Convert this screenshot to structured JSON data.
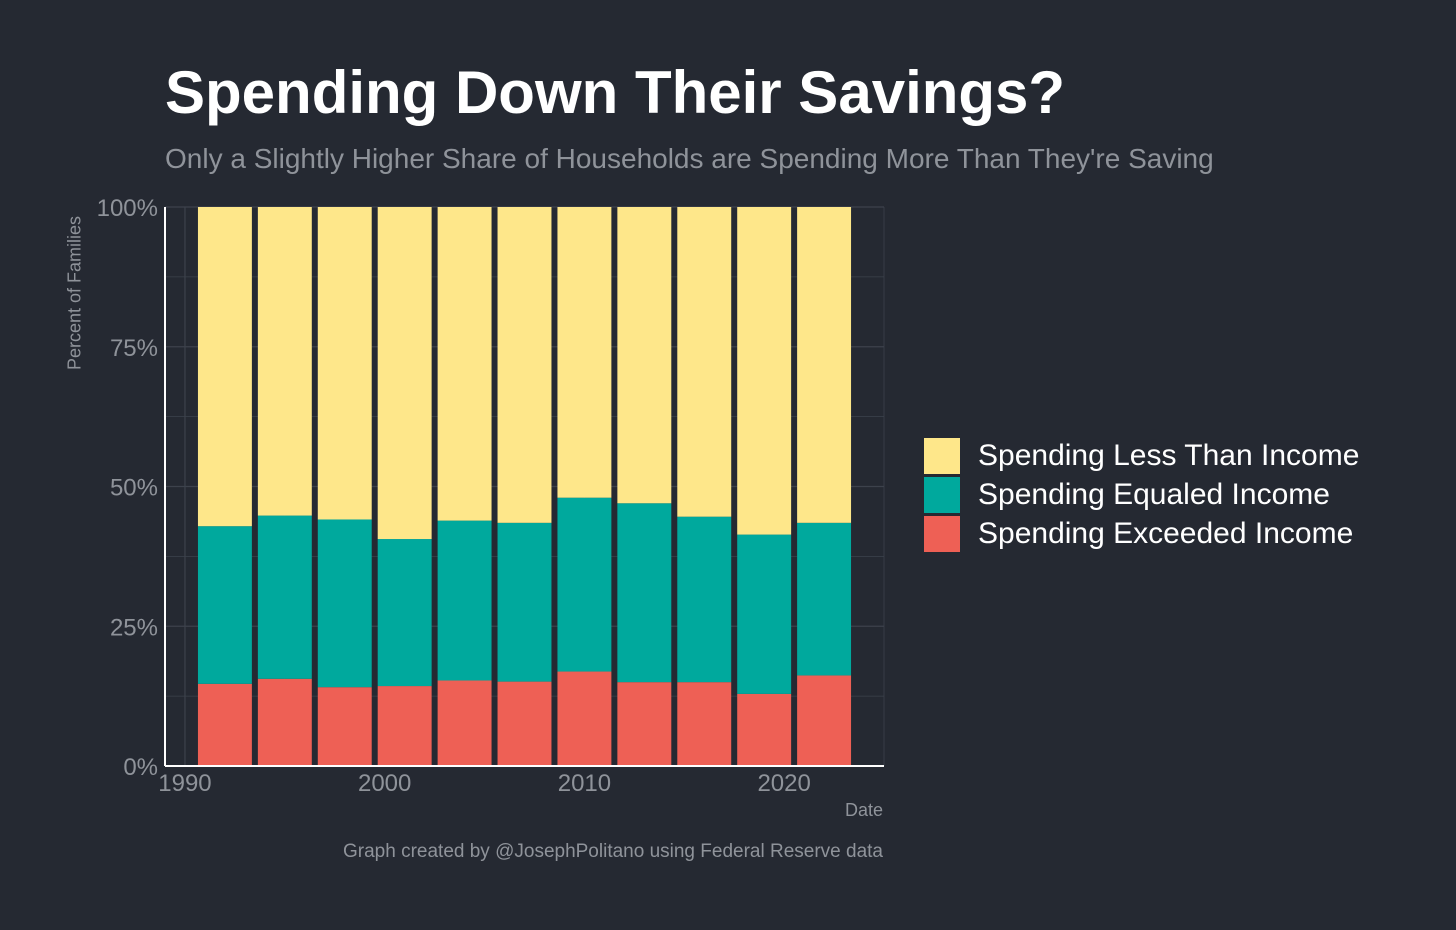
{
  "header": {
    "title": "Spending Down Their Savings?",
    "subtitle": "Only a Slightly Higher Share of Households are Spending More Than They're Saving"
  },
  "footer": {
    "caption": "Graph created by @JosephPolitano using Federal Reserve data"
  },
  "colors": {
    "background": "#252932",
    "less": "#FEE78A",
    "equaled": "#00A99D",
    "exceeded": "#EE6055",
    "text_muted": "#8f939a",
    "grid": "#3d424c",
    "axis": "#ffffff"
  },
  "legend": {
    "items": [
      {
        "label": "Spending Less Than Income",
        "color": "#FEE78A"
      },
      {
        "label": "Spending Equaled Income",
        "color": "#00A99D"
      },
      {
        "label": "Spending Exceeded Income",
        "color": "#EE6055"
      }
    ]
  },
  "chart_data": {
    "type": "bar",
    "stacked": true,
    "xlabel": "Date",
    "ylabel": "Percent of Families",
    "xlim": [
      1989,
      2025
    ],
    "ylim": [
      0,
      100
    ],
    "x_ticks": [
      1990,
      2000,
      2010,
      2020
    ],
    "y_ticks": [
      0,
      25,
      50,
      75,
      100
    ],
    "y_tick_labels": [
      "0%",
      "25%",
      "50%",
      "75%",
      "100%"
    ],
    "grid": true,
    "legend_position": "right",
    "x": [
      1992,
      1995,
      1998,
      2001,
      2004,
      2007,
      2010,
      2013,
      2016,
      2019,
      2022
    ],
    "series": [
      {
        "name": "Spending Exceeded Income",
        "color": "#EE6055",
        "values": [
          14.7,
          15.6,
          14.1,
          14.3,
          15.3,
          15.1,
          16.9,
          15.0,
          15.0,
          12.9,
          16.2
        ]
      },
      {
        "name": "Spending Equaled Income",
        "color": "#00A99D",
        "values": [
          28.2,
          29.2,
          30.0,
          26.3,
          28.6,
          28.4,
          31.1,
          32.0,
          29.6,
          28.5,
          27.3
        ]
      },
      {
        "name": "Spending Less Than Income",
        "color": "#FEE78A",
        "values": [
          57.1,
          55.2,
          55.9,
          59.4,
          56.1,
          56.5,
          52.0,
          53.0,
          55.4,
          58.6,
          56.5
        ]
      }
    ]
  }
}
